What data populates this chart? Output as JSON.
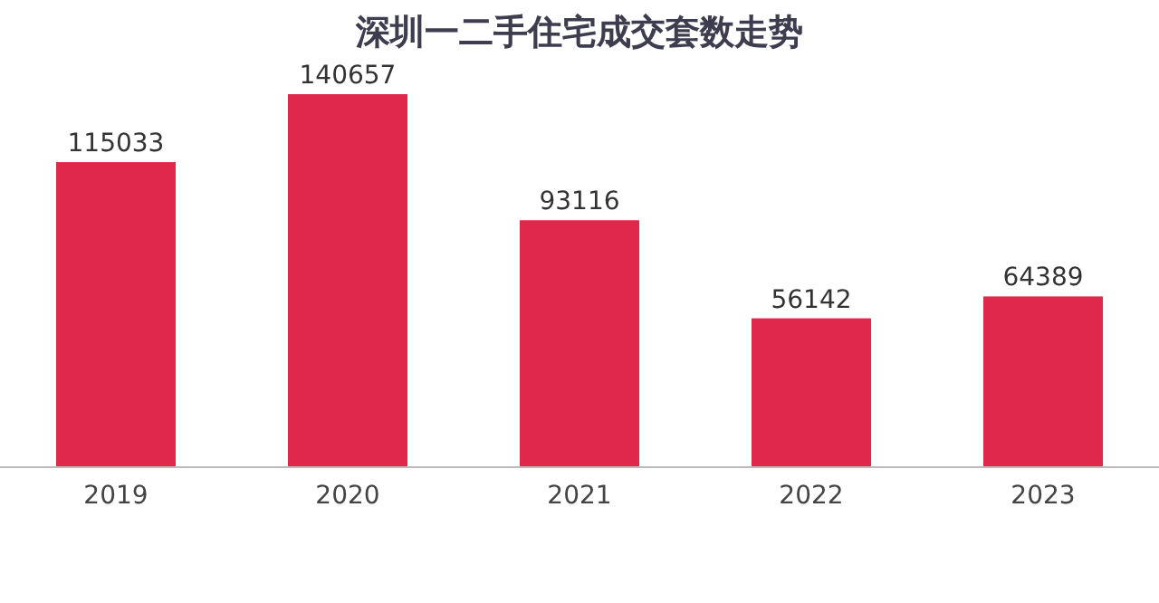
{
  "chart_data": {
    "type": "bar",
    "title": "深圳一二手住宅成交套数走势",
    "categories": [
      "2019",
      "2020",
      "2021",
      "2022",
      "2023"
    ],
    "values": [
      115033,
      140657,
      93116,
      56142,
      64389
    ],
    "color": "#e0284a",
    "data_labels": true
  }
}
